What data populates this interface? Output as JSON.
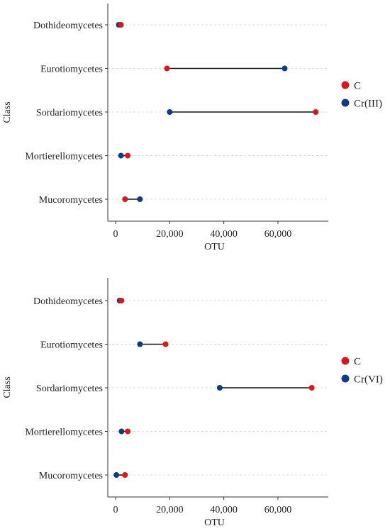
{
  "colors": {
    "C": "#d7191c",
    "Cr": "#0f3b82"
  },
  "chart_data": [
    {
      "type": "dumbbell",
      "ylabel": "Class",
      "xlabel": "OTU",
      "xlim": [
        0,
        76000
      ],
      "xticks": [
        0,
        20000,
        40000,
        60000
      ],
      "xtick_labels": [
        "0",
        "20,000",
        "40,000",
        "60,000"
      ],
      "grid": true,
      "legend_position": "right",
      "categories": [
        "Dothideomycetes",
        "Eurotiomycetes",
        "Sordariomycetes",
        "Mortierellomycetes",
        "Mucoromycetes"
      ],
      "series": [
        {
          "name": "C",
          "color": "#d7191c",
          "values": [
            2000,
            19000,
            74000,
            4500,
            3500
          ]
        },
        {
          "name": "Cr(III)",
          "color": "#0f3b82",
          "values": [
            1200,
            62500,
            20000,
            2000,
            9000
          ]
        }
      ]
    },
    {
      "type": "dumbbell",
      "ylabel": "Class",
      "xlabel": "OTU",
      "xlim": [
        0,
        76000
      ],
      "xticks": [
        0,
        20000,
        40000,
        60000
      ],
      "xtick_labels": [
        "0",
        "20,000",
        "40,000",
        "60,000"
      ],
      "grid": true,
      "legend_position": "right",
      "categories": [
        "Dothideomycetes",
        "Eurotiomycetes",
        "Sordariomycetes",
        "Mortierellomycetes",
        "Mucoromycetes"
      ],
      "series": [
        {
          "name": "C",
          "color": "#d7191c",
          "values": [
            2200,
            18500,
            72500,
            4500,
            3500
          ]
        },
        {
          "name": "Cr(VI)",
          "color": "#0f3b82",
          "values": [
            1500,
            9000,
            38500,
            2200,
            300
          ]
        }
      ]
    }
  ]
}
